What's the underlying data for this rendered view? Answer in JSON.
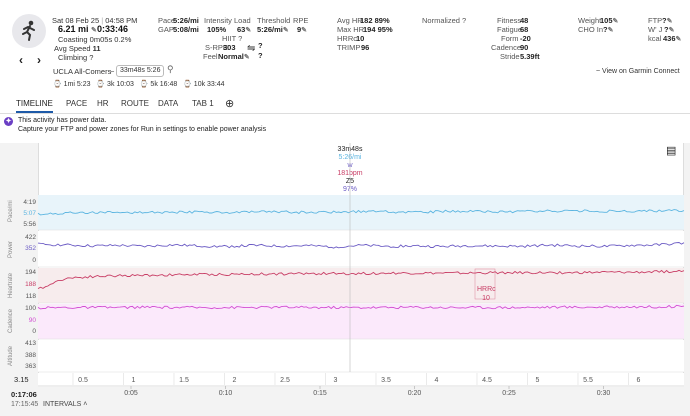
{
  "activity": {
    "date": "Sat 08 Feb 25",
    "time": "04:58 PM",
    "distance": "6.21 mi",
    "duration": "0:33:46",
    "coasting": "Coasting 0m05s  0.2%",
    "avg_speed_label": "Avg Speed",
    "avg_speed": "11",
    "climbing": "Climbing ?",
    "name": "UCLA All-Comers",
    "tilde": "~",
    "time_pill": "33m48s 5:26",
    "view_garmin": "~ View on Garmin Connect"
  },
  "metrics": {
    "pace_label": "Pace",
    "pace": "5:26/mi",
    "gap_label": "GAP",
    "gap": "5:08/mi",
    "intensity_label": "Intensity",
    "intensity": "105%",
    "load_label": "Load",
    "load": "63",
    "threshold_label": "Threshold",
    "threshold": "5:26/mi",
    "rpe_label": "RPE",
    "rpe": "9",
    "hiit": "HIIT ?",
    "srpe_label": "S-RPE",
    "srpe": "303",
    "feel_label": "Feel",
    "feel": "Normal",
    "q1": "?",
    "q2": "?",
    "avghr_label": "Avg HR",
    "avghr": "182  89%",
    "maxhr_label": "Max HR",
    "maxhr": "194  95%",
    "hrrc_label": "HRRc",
    "hrrc": "10",
    "trimp_label": "TRIMP",
    "trimp": "96",
    "normalized": "Normalized ?",
    "fitness_label": "Fitness",
    "fitness": "48",
    "fatigue_label": "Fatigue",
    "fatigue": "68",
    "form_label": "Form",
    "form": "-20",
    "cadence_label": "Cadence",
    "cadence": "90",
    "stride_label": "Stride",
    "stride": "5.39ft",
    "weight_label": "Weight",
    "weight": "105",
    "cho_label": "CHO In",
    "cho": "?",
    "ftp_label": "FTP",
    "ftp": "?",
    "wj_label": "W' J",
    "wj": "?",
    "kcal_label": "kcal",
    "kcal": "436"
  },
  "laps": [
    "1mi 5:23",
    "3k 10:03",
    "5k 16:48",
    "10k 33:44"
  ],
  "tabs": [
    "TIMELINE",
    "PACE",
    "HR",
    "ROUTE",
    "DATA",
    "TAB 1"
  ],
  "notice": {
    "line1": "This activity has power data.",
    "line2": "Capture your FTP and power zones for Run in settings to enable power analysis"
  },
  "tooltip": {
    "time": "33m48s",
    "pace": "5:26/mi",
    "power": "w",
    "hr": "181bpm",
    "zone": "Z5",
    "pct": "97%"
  },
  "panels": {
    "pace": {
      "label": "Pace/mi",
      "top": "4:19",
      "mid": "5:07",
      "bot": "5:56"
    },
    "power": {
      "label": "Power",
      "top": "422",
      "mid": "352",
      "bot": "0"
    },
    "hr": {
      "label": "Heartrate",
      "top": "194",
      "mid": "188",
      "bot": "118"
    },
    "cadence": {
      "label": "Cadence",
      "top": "100",
      "mid": "90",
      "bot": "0"
    },
    "altitude": {
      "label": "Altitude",
      "top": "413",
      "mid": "388",
      "bot": "363"
    }
  },
  "hrrc_marker": {
    "label": "HRRc",
    "value": "10"
  },
  "chart_data": {
    "type": "line",
    "title": "Activity timeline",
    "x_distance_ticks": [
      "0.5",
      "1",
      "1.5",
      "2",
      "2.5",
      "3",
      "3.5",
      "4",
      "4.5",
      "5",
      "5.5",
      "6"
    ],
    "x_distance_start": "3.15",
    "x_time_ticks": [
      "0:05",
      "0:10",
      "0:15",
      "0:20",
      "0:25",
      "0:30"
    ],
    "x_time_start": "0:17:06",
    "x_time_sub": "17:15:45",
    "series": [
      {
        "name": "Pace",
        "color": "#5ab4e0",
        "values": [
          5.15,
          5.12,
          5.1,
          5.11,
          5.09,
          5.1,
          5.08,
          5.1,
          5.09,
          5.08,
          5.1,
          5.09,
          5.07,
          5.08,
          5.09,
          5.07,
          5.06,
          5.08,
          5.07,
          5.06,
          5.05,
          5.06,
          5.07,
          5.05,
          5.04
        ]
      },
      {
        "name": "Power",
        "color": "#6b5bc4",
        "values": [
          395,
          392,
          388,
          390,
          386,
          392,
          388,
          385,
          390,
          387,
          389,
          384,
          390,
          386,
          388,
          385,
          389,
          387,
          386,
          391,
          388,
          386,
          390,
          392,
          400
        ]
      },
      {
        "name": "Heartrate",
        "color": "#c83c64",
        "values": [
          150,
          176,
          180,
          182,
          183,
          184,
          185,
          185,
          186,
          186,
          187,
          187,
          187,
          188,
          188,
          188,
          188,
          189,
          189,
          189,
          189,
          190,
          190,
          191,
          193
        ]
      },
      {
        "name": "Cadence",
        "color": "#d24ed2",
        "values": [
          89,
          90,
          90,
          90,
          91,
          90,
          90,
          90,
          90,
          91,
          90,
          90,
          90,
          90,
          91,
          90,
          90,
          90,
          90,
          91,
          91,
          91,
          92,
          92,
          93
        ]
      }
    ]
  },
  "intervals_label": "INTERVALS",
  "colors": {
    "accent": "#1e5aa8",
    "notice_icon": "#6b3fc4"
  }
}
